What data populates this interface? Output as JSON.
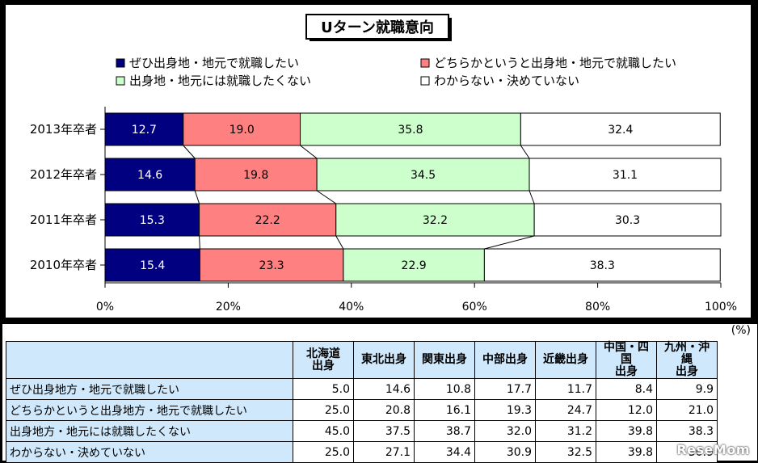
{
  "chart_data": {
    "type": "bar",
    "title": "Uターン就職意向",
    "orientation": "horizontal",
    "stacked": "100%",
    "categories": [
      "2013年卒者",
      "2012年卒者",
      "2011年卒者",
      "2010年卒者"
    ],
    "series": [
      {
        "name": "ぜひ出身地・地元で就職したい",
        "color": "#000080",
        "values": [
          12.7,
          14.6,
          15.3,
          15.4
        ]
      },
      {
        "name": "どちらかというと出身地・地元で就職したい",
        "color": "#ff8080",
        "values": [
          19.0,
          19.8,
          22.2,
          23.3
        ]
      },
      {
        "name": "出身地・地元には就職したくない",
        "color": "#ccffcc",
        "values": [
          35.8,
          34.5,
          32.2,
          22.9
        ]
      },
      {
        "name": "わからない・決めていない",
        "color": "#ffffff",
        "values": [
          32.4,
          31.1,
          30.3,
          38.3
        ]
      }
    ],
    "xticks": [
      "0%",
      "20%",
      "40%",
      "60%",
      "80%",
      "100%"
    ],
    "xlim": [
      0,
      100
    ],
    "legend_position": "top",
    "series_lines": true
  },
  "table": {
    "unit": "(%)",
    "columns": [
      [
        "北海道",
        "出身"
      ],
      [
        "東北出身"
      ],
      [
        "関東出身"
      ],
      [
        "中部出身"
      ],
      [
        "近畿出身"
      ],
      [
        "中国・四国",
        "出身"
      ],
      [
        "九州・沖縄",
        "出身"
      ]
    ],
    "rows": [
      {
        "label": "ぜひ出身地方・地元で就職したい",
        "values": [
          "5.0",
          "14.6",
          "10.8",
          "17.7",
          "11.7",
          "8.4",
          "9.9"
        ]
      },
      {
        "label": "どちらかというと出身地方・地元で就職したい",
        "values": [
          "25.0",
          "20.8",
          "16.1",
          "19.3",
          "24.7",
          "12.0",
          "21.0"
        ]
      },
      {
        "label": "出身地方・地元には就職したくない",
        "values": [
          "45.0",
          "37.5",
          "38.7",
          "32.0",
          "31.2",
          "39.8",
          "38.3"
        ]
      },
      {
        "label": "わからない・決めていない",
        "values": [
          "25.0",
          "27.1",
          "34.4",
          "30.9",
          "32.5",
          "39.8",
          "30.9"
        ]
      }
    ]
  },
  "watermark": "ReseMom"
}
